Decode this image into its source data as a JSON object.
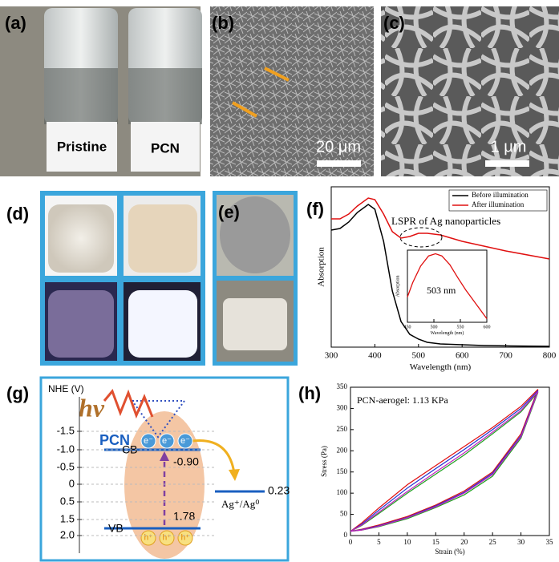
{
  "panels": {
    "a": {
      "label": "(a)",
      "texts": [
        "Pristine",
        "PCN"
      ]
    },
    "b": {
      "label": "(b)",
      "scale_bar": "20 μm"
    },
    "c": {
      "label": "(c)",
      "scale_bar": "1 μm"
    },
    "d": {
      "label": "(d)"
    },
    "e": {
      "label": "(e)"
    },
    "g": {
      "label": "(g)",
      "axis_title": "NHE (V)",
      "ticks": [
        "-1.5",
        "-1.0",
        "-0.5",
        "0",
        "0.5",
        "1.5",
        "2.0"
      ],
      "light": "hv",
      "material": "PCN",
      "electron": "e⁻",
      "hole": "h⁺",
      "cb": "CB",
      "cb_value": "-0.90",
      "vb": "VB",
      "vb_value": "1.78",
      "couple": "Ag⁺/Ag⁰",
      "couple_value": "0.23"
    }
  },
  "chart_data": [
    {
      "type": "line",
      "panel_label": "(f)",
      "xlabel": "Wavelength (nm)",
      "ylabel": "Absorption",
      "x": [
        300,
        320,
        340,
        360,
        385,
        400,
        420,
        440,
        460,
        480,
        500,
        520,
        550,
        600,
        650,
        700,
        800
      ],
      "xlim": [
        300,
        800
      ],
      "xticks": [
        300,
        400,
        500,
        600,
        700,
        800
      ],
      "ylim": [
        0,
        1
      ],
      "legend": "upper right",
      "annotation": "LSPR of Ag nanoparticles",
      "series": [
        {
          "name": "Before illumination",
          "color": "#000000",
          "values": [
            0.73,
            0.74,
            0.78,
            0.84,
            0.89,
            0.86,
            0.66,
            0.35,
            0.16,
            0.08,
            0.05,
            0.03,
            0.02,
            0.015,
            0.01,
            0.008,
            0.005
          ]
        },
        {
          "name": "After illumination",
          "color": "#e01010",
          "values": [
            0.8,
            0.8,
            0.83,
            0.88,
            0.93,
            0.92,
            0.83,
            0.72,
            0.68,
            0.69,
            0.71,
            0.71,
            0.7,
            0.66,
            0.63,
            0.6,
            0.55
          ]
        }
      ],
      "inset": {
        "type": "line",
        "label": "503 nm",
        "xlabel": "Wavelength (nm)",
        "ylabel": "Absorption",
        "x": [
          450,
          460,
          475,
          490,
          503,
          515,
          530,
          545,
          560,
          580,
          600
        ],
        "xlim": [
          450,
          600
        ],
        "xticks": [
          450,
          500,
          550,
          600
        ],
        "ylim": [
          0,
          1
        ],
        "series": [
          {
            "color": "#e01010",
            "values": [
              0.35,
              0.55,
              0.78,
              0.92,
              0.95,
              0.92,
              0.8,
              0.62,
              0.45,
              0.25,
              0.05
            ]
          }
        ]
      }
    },
    {
      "type": "line",
      "panel_label": "(h)",
      "xlabel": "Strain (%)",
      "ylabel": "Stress (Pa)",
      "annotation": "PCN-aerogel: 1.13 KPa",
      "x": [
        0,
        2,
        5,
        10,
        15,
        20,
        25,
        30,
        33,
        30,
        25,
        20,
        15,
        10,
        5,
        2,
        0
      ],
      "xlim": [
        0,
        35
      ],
      "xticks": [
        0,
        5,
        10,
        15,
        20,
        25,
        30,
        35
      ],
      "ylim": [
        0,
        350
      ],
      "yticks": [
        0,
        50,
        100,
        150,
        200,
        250,
        300,
        350
      ],
      "series": [
        {
          "color": "#e01010",
          "values": [
            10,
            30,
            65,
            120,
            165,
            210,
            255,
            305,
            345,
            240,
            150,
            105,
            72,
            45,
            25,
            15,
            10
          ]
        },
        {
          "color": "#2030d0",
          "values": [
            10,
            27,
            60,
            112,
            158,
            203,
            250,
            300,
            342,
            236,
            147,
            102,
            70,
            43,
            23,
            14,
            10
          ]
        },
        {
          "color": "#20a020",
          "values": [
            10,
            24,
            52,
            100,
            145,
            190,
            240,
            292,
            338,
            230,
            140,
            96,
            66,
            40,
            21,
            13,
            10
          ]
        },
        {
          "color": "#c020c0",
          "values": [
            10,
            25,
            55,
            104,
            150,
            195,
            244,
            295,
            340,
            233,
            144,
            100,
            68,
            42,
            22,
            13,
            10
          ]
        }
      ]
    }
  ]
}
